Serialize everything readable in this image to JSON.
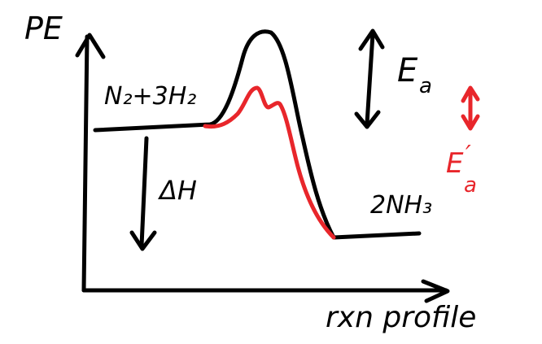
{
  "labels": {
    "y_axis": "PE",
    "x_axis": "rxn profile",
    "reactants": "N₂+3H₂",
    "products": "2NH₃",
    "delta_h": "ΔH",
    "ea": "E",
    "ea_sub": "a",
    "ea_prime": "E",
    "ea_prime_sub": "a",
    "ea_prime_mark": "′"
  },
  "colors": {
    "ink": "#000000",
    "catalyzed": "#e8262b"
  }
}
